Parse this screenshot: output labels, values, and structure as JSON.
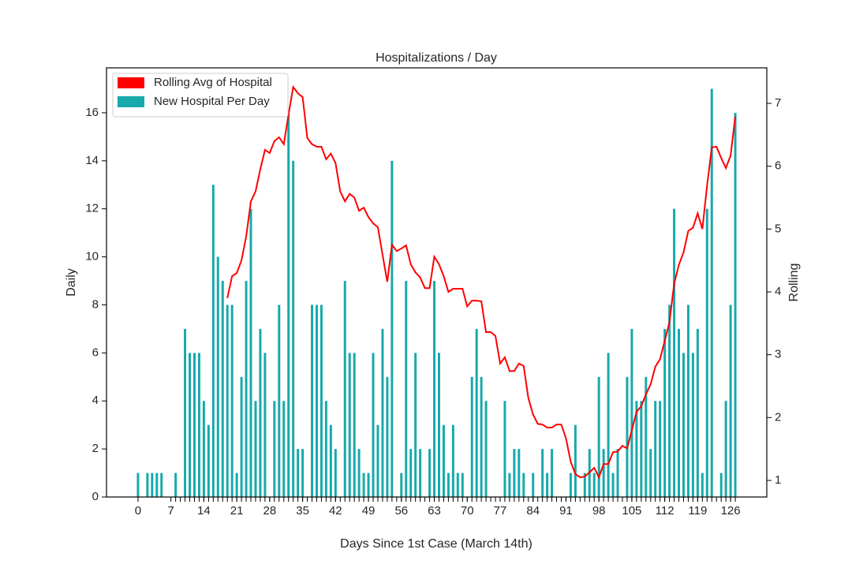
{
  "chart_data": {
    "type": "bar_line",
    "title": "Hospitalizations / Day",
    "xlabel": "Days Since 1st Case (March 14th)",
    "ylabel": "Daily",
    "y2label": "Rolling",
    "x": [
      0,
      1,
      2,
      3,
      4,
      5,
      6,
      7,
      8,
      9,
      10,
      11,
      12,
      13,
      14,
      15,
      16,
      17,
      18,
      19,
      20,
      21,
      22,
      23,
      24,
      25,
      26,
      27,
      28,
      29,
      30,
      31,
      32,
      33,
      34,
      35,
      36,
      37,
      38,
      39,
      40,
      41,
      42,
      43,
      44,
      45,
      46,
      47,
      48,
      49,
      50,
      51,
      52,
      53,
      54,
      55,
      56,
      57,
      58,
      59,
      60,
      61,
      62,
      63,
      64,
      65,
      66,
      67,
      68,
      69,
      70,
      71,
      72,
      73,
      74,
      75,
      76,
      77,
      78,
      79,
      80,
      81,
      82,
      83,
      84,
      85,
      86,
      87,
      88,
      89,
      90,
      91,
      92,
      93,
      94,
      95,
      96,
      97,
      98,
      99,
      100,
      101,
      102,
      103,
      104,
      105,
      106,
      107,
      108,
      109,
      110,
      111,
      112,
      113,
      114,
      115,
      116,
      117,
      118,
      119,
      120,
      121,
      122,
      123,
      124,
      125,
      126,
      127
    ],
    "series": [
      {
        "name": "Rolling Avg of Hospital",
        "type": "line",
        "axis": "y2",
        "color": "#ff0000",
        "values": [
          null,
          null,
          null,
          null,
          null,
          null,
          null,
          null,
          null,
          null,
          null,
          null,
          null,
          null,
          null,
          null,
          null,
          null,
          null,
          3.9,
          4.25,
          4.3,
          4.5,
          4.88,
          5.44,
          5.6,
          5.95,
          6.26,
          6.21,
          6.4,
          6.46,
          6.35,
          6.82,
          7.26,
          7.16,
          7.1,
          6.45,
          6.35,
          6.31,
          6.31,
          6.11,
          6.2,
          6.05,
          5.6,
          5.44,
          5.56,
          5.5,
          5.29,
          5.34,
          5.19,
          5.09,
          5.03,
          4.59,
          4.16,
          4.75,
          4.65,
          4.69,
          4.74,
          4.44,
          4.31,
          4.23,
          4.06,
          4.06,
          4.56,
          4.44,
          4.25,
          4.0,
          4.05,
          4.05,
          4.05,
          3.77,
          3.86,
          3.86,
          3.85,
          3.36,
          3.36,
          3.3,
          2.86,
          2.96,
          2.74,
          2.74,
          2.86,
          2.82,
          2.31,
          2.05,
          1.9,
          1.89,
          1.84,
          1.84,
          1.89,
          1.89,
          1.67,
          1.3,
          1.1,
          1.05,
          1.06,
          1.13,
          1.2,
          1.05,
          1.26,
          1.26,
          1.45,
          1.46,
          1.55,
          1.51,
          1.8,
          2.09,
          2.18,
          2.37,
          2.53,
          2.81,
          2.93,
          3.22,
          3.52,
          4.13,
          4.43,
          4.63,
          4.97,
          5.02,
          5.25,
          5.0,
          5.69,
          6.3,
          6.31,
          6.13,
          5.97,
          6.17,
          6.79
        ]
      },
      {
        "name": "New Hospital Per Day",
        "type": "bar",
        "axis": "y",
        "color": "#17a9ab",
        "values": [
          1,
          0,
          1,
          1,
          1,
          1,
          0,
          0,
          1,
          0,
          7,
          6,
          6,
          6,
          4,
          3,
          13,
          10,
          9,
          8,
          8,
          1,
          5,
          9,
          12,
          4,
          7,
          6,
          0,
          4,
          8,
          4,
          16,
          14,
          2,
          2,
          0,
          8,
          8,
          8,
          4,
          3,
          2,
          0,
          9,
          6,
          6,
          2,
          1,
          1,
          6,
          3,
          7,
          5,
          14,
          0,
          1,
          9,
          2,
          6,
          2,
          0,
          2,
          9,
          6,
          3,
          1,
          3,
          1,
          1,
          0,
          5,
          7,
          5,
          4,
          0,
          0,
          0,
          4,
          1,
          2,
          2,
          1,
          0,
          1,
          0,
          2,
          1,
          2,
          0,
          0,
          0,
          1,
          3,
          0,
          1,
          2,
          1,
          5,
          2,
          6,
          1,
          2,
          0,
          5,
          7,
          4,
          4,
          5,
          2,
          4,
          4,
          7,
          8,
          12,
          7,
          6,
          8,
          6,
          7,
          1,
          12,
          17,
          0,
          1,
          4,
          8,
          16
        ]
      }
    ],
    "xlim": [
      -6.7,
      133.7
    ],
    "xticks": [
      0,
      7,
      14,
      21,
      28,
      35,
      42,
      49,
      56,
      63,
      70,
      77,
      84,
      91,
      98,
      105,
      112,
      119,
      126
    ],
    "ylim": [
      0,
      17.87
    ],
    "yticks": [
      0,
      2,
      4,
      6,
      8,
      10,
      12,
      14,
      16
    ],
    "y2lim": [
      0.736,
      7.565
    ],
    "y2ticks": [
      1,
      2,
      3,
      4,
      5,
      6,
      7
    ],
    "legend": "upper left"
  }
}
